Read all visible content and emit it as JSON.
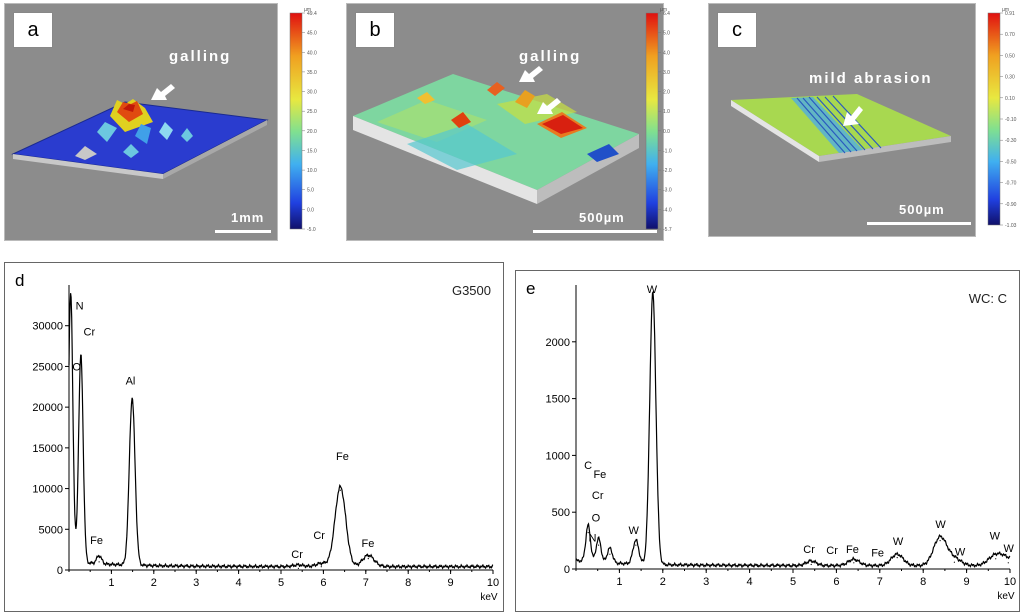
{
  "panels": [
    {
      "letter": "a",
      "annotation": "galling",
      "scale": "1mm"
    },
    {
      "letter": "b",
      "annotation": "galling",
      "scale": "500µm"
    },
    {
      "letter": "c",
      "annotation": "mild abrasion",
      "scale": "500µm"
    }
  ],
  "colorbars": [
    {
      "unit": "µm",
      "ticks": [
        "49.4",
        "45.0",
        "40.0",
        "35.0",
        "30.0",
        "25.0",
        "20.0",
        "15.0",
        "10.0",
        "5.0",
        "0.0",
        "-5.0"
      ]
    },
    {
      "unit": "µm",
      "ticks": [
        "6.4",
        "5.0",
        "4.0",
        "3.0",
        "2.0",
        "1.0",
        "0.0",
        "-1.0",
        "-2.0",
        "-3.0",
        "-4.0",
        "-5.7"
      ]
    },
    {
      "unit": "µm",
      "ticks": [
        "0.91",
        "0.70",
        "0.50",
        "0.30",
        "0.10",
        "-0.10",
        "-0.30",
        "-0.50",
        "-0.70",
        "-0.90",
        "-1.03"
      ]
    }
  ],
  "chart_data": [
    {
      "type": "line",
      "panel": "d",
      "sample": "G3500",
      "xlabel": "keV",
      "xlim": [
        0,
        10
      ],
      "ylim": [
        0,
        35000
      ],
      "xticks": [
        "1",
        "2",
        "3",
        "4",
        "5",
        "6",
        "7",
        "8",
        "9",
        "10"
      ],
      "yticks": [
        "0",
        "5000",
        "10000",
        "15000",
        "20000",
        "25000",
        "30000"
      ],
      "peaks": [
        {
          "x": 0.04,
          "y": 33000
        },
        {
          "x": 0.28,
          "y": 25500
        },
        {
          "x": 0.71,
          "y": 1000
        },
        {
          "x": 1.49,
          "y": 20500
        },
        {
          "x": 5.41,
          "y": 200
        },
        {
          "x": 5.95,
          "y": 400
        },
        {
          "x": 6.4,
          "y": 9800
        },
        {
          "x": 7.06,
          "y": 1400
        }
      ],
      "labels": [
        {
          "text": "N",
          "x": 0.25,
          "y": 32000
        },
        {
          "text": "Cr",
          "x": 0.48,
          "y": 28800
        },
        {
          "text": "O",
          "x": 0.18,
          "y": 24500
        },
        {
          "text": "Fe",
          "x": 0.65,
          "y": 3200
        },
        {
          "text": "Al",
          "x": 1.45,
          "y": 22800
        },
        {
          "text": "Cr",
          "x": 5.38,
          "y": 1500
        },
        {
          "text": "Cr",
          "x": 5.9,
          "y": 3800
        },
        {
          "text": "Fe",
          "x": 6.45,
          "y": 13500
        },
        {
          "text": "Fe",
          "x": 7.05,
          "y": 2800
        }
      ]
    },
    {
      "type": "line",
      "panel": "e",
      "sample": "WC: C",
      "xlabel": "keV",
      "xlim": [
        0,
        10
      ],
      "ylim": [
        0,
        2500
      ],
      "xticks": [
        "1",
        "2",
        "3",
        "4",
        "5",
        "6",
        "7",
        "8",
        "9",
        "10"
      ],
      "yticks": [
        "0",
        "500",
        "1000",
        "1500",
        "2000"
      ],
      "peaks": [
        {
          "x": 0.28,
          "y": 320
        },
        {
          "x": 0.52,
          "y": 210
        },
        {
          "x": 0.78,
          "y": 130
        },
        {
          "x": 1.38,
          "y": 210
        },
        {
          "x": 1.77,
          "y": 2390
        },
        {
          "x": 5.42,
          "y": 40
        },
        {
          "x": 6.4,
          "y": 55
        },
        {
          "x": 7.4,
          "y": 100
        },
        {
          "x": 8.39,
          "y": 250
        },
        {
          "x": 8.72,
          "y": 60
        },
        {
          "x": 9.67,
          "y": 90
        },
        {
          "x": 9.96,
          "y": 55
        }
      ],
      "labels": [
        {
          "text": "C",
          "x": 0.28,
          "y": 880
        },
        {
          "text": "Fe",
          "x": 0.55,
          "y": 800
        },
        {
          "text": "Cr",
          "x": 0.5,
          "y": 615
        },
        {
          "text": "O",
          "x": 0.46,
          "y": 420
        },
        {
          "text": "N",
          "x": 0.38,
          "y": 240
        },
        {
          "text": "W",
          "x": 1.33,
          "y": 310
        },
        {
          "text": "W",
          "x": 1.75,
          "y": 2430
        },
        {
          "text": "Cr",
          "x": 5.37,
          "y": 140
        },
        {
          "text": "Cr",
          "x": 5.9,
          "y": 130
        },
        {
          "text": "Fe",
          "x": 6.37,
          "y": 140
        },
        {
          "text": "Fe",
          "x": 6.95,
          "y": 110
        },
        {
          "text": "W",
          "x": 7.42,
          "y": 210
        },
        {
          "text": "W",
          "x": 8.4,
          "y": 360
        },
        {
          "text": "W",
          "x": 8.85,
          "y": 120
        },
        {
          "text": "W",
          "x": 9.65,
          "y": 260
        },
        {
          "text": "W",
          "x": 9.97,
          "y": 150
        }
      ]
    }
  ]
}
